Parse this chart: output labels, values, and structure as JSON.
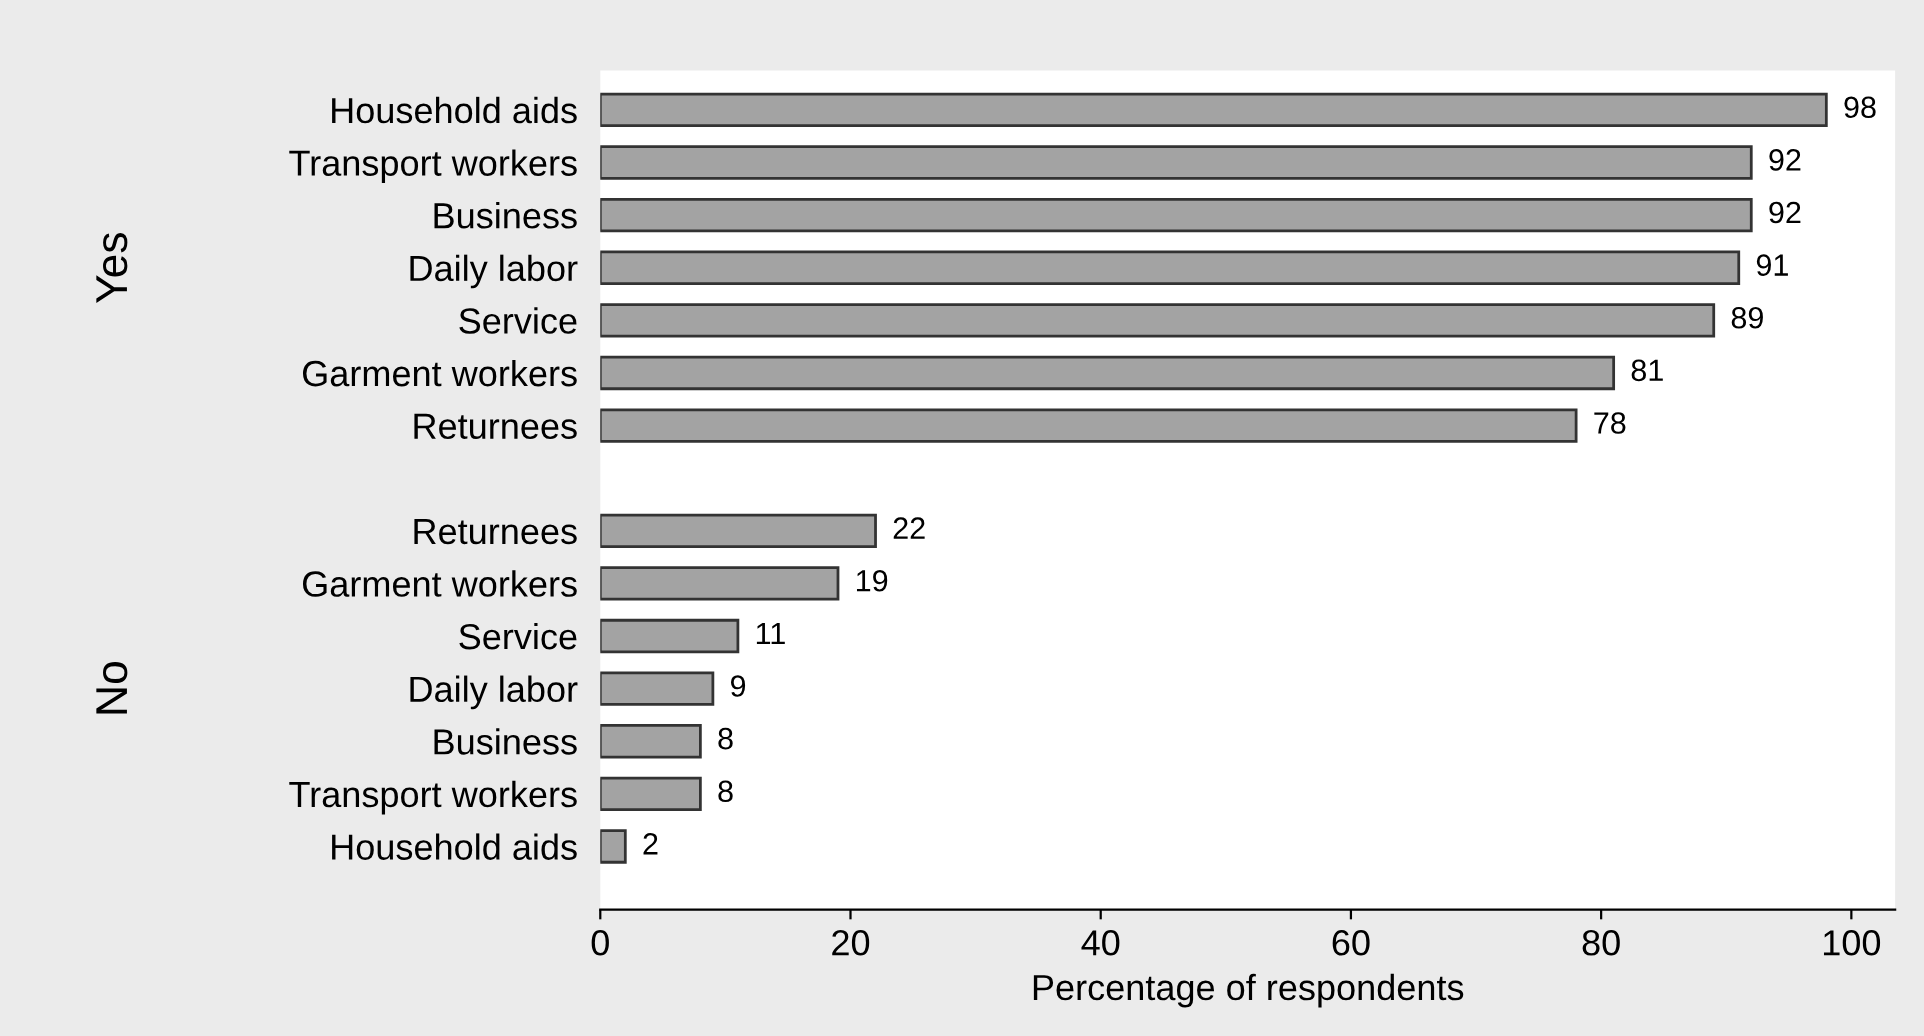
{
  "chart_data": {
    "type": "bar",
    "orientation": "horizontal",
    "xlabel": "Percentage of respondents",
    "categories": [
      "Household aids",
      "Transport workers",
      "Business",
      "Daily labor",
      "Service",
      "Garment workers",
      "Returnees",
      null,
      "Returnees",
      "Garment workers",
      "Service",
      "Daily labor",
      "Business",
      "Transport workers",
      "Household aids"
    ],
    "values": [
      98,
      92,
      92,
      91,
      89,
      81,
      78,
      null,
      22,
      19,
      11,
      9,
      8,
      8,
      2
    ],
    "color": "#a3a3a3",
    "xlim": [
      0,
      103.5
    ],
    "xticks": [
      0,
      20,
      40,
      60,
      80,
      100
    ],
    "data_labels": true,
    "grid": false,
    "annotations": [
      "Yes",
      "No"
    ]
  }
}
